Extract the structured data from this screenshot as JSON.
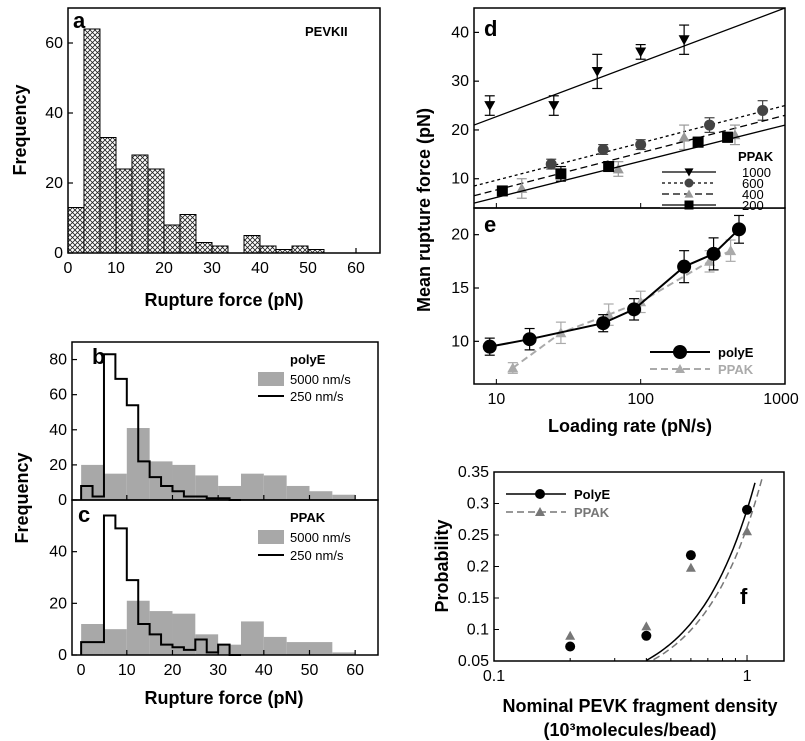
{
  "chart_data": [
    {
      "panel": "a",
      "type": "bar",
      "legend": [
        "PEVKII"
      ],
      "xlabel": "Rupture force (pN)",
      "ylabel": "Frequency",
      "xlim": [
        0,
        65
      ],
      "ylim": [
        0,
        70
      ],
      "xticks": [
        0,
        10,
        20,
        30,
        40,
        50,
        60
      ],
      "yticks": [
        0,
        20,
        40,
        60
      ],
      "bin_width": 3.33,
      "bin_starts": [
        0,
        3.33,
        6.67,
        10,
        13.33,
        16.67,
        20,
        23.33,
        26.67,
        30,
        33.33,
        36.67,
        40,
        43.33,
        46.67,
        50,
        53.33,
        56.67
      ],
      "values": [
        13,
        64,
        33,
        24,
        28,
        24,
        8,
        11,
        3,
        2,
        0,
        5,
        2,
        1,
        2,
        1,
        0,
        0
      ],
      "fill": "crosshatch"
    },
    {
      "panel": "b",
      "type": "bar",
      "legend_title": "polyE",
      "xlim": [
        -2,
        65
      ],
      "ylim": [
        0,
        90
      ],
      "yticks": [
        0,
        20,
        40,
        60,
        80
      ],
      "series": [
        {
          "name": "5000 nm/s",
          "style": "filled",
          "color": "#a8a8a8",
          "bin_starts": [
            0,
            5,
            10,
            15,
            20,
            25,
            30,
            35,
            40,
            45,
            50,
            55
          ],
          "values": [
            20,
            15,
            41,
            22,
            20,
            14,
            8,
            15,
            14,
            8,
            5,
            3
          ]
        },
        {
          "name": "250 nm/s",
          "style": "step",
          "color": "#000000",
          "bin_starts": [
            0,
            2.5,
            5,
            7.5,
            10,
            12.5,
            15,
            17.5,
            20,
            22.5,
            25,
            27.5,
            30,
            32.5
          ],
          "values": [
            8,
            2,
            83,
            69,
            54,
            22,
            13,
            8,
            5,
            2,
            2,
            1,
            1,
            0
          ]
        }
      ]
    },
    {
      "panel": "c",
      "type": "bar",
      "legend_title": "PPAK",
      "xlabel": "Rupture force (pN)",
      "ylabel": "Frequency",
      "xlim": [
        -2,
        65
      ],
      "ylim": [
        0,
        60
      ],
      "xticks": [
        0,
        10,
        20,
        30,
        40,
        50,
        60
      ],
      "yticks": [
        0,
        20,
        40
      ],
      "series": [
        {
          "name": "5000 nm/s",
          "style": "filled",
          "color": "#a8a8a8",
          "bin_starts": [
            0,
            5,
            10,
            15,
            20,
            25,
            30,
            35,
            40,
            45,
            50,
            55
          ],
          "values": [
            12,
            10,
            21,
            17,
            16,
            8,
            4,
            13,
            7,
            5,
            5,
            1
          ]
        },
        {
          "name": "250 nm/s",
          "style": "step",
          "color": "#000000",
          "bin_starts": [
            0,
            2.5,
            5,
            7.5,
            10,
            12.5,
            15,
            17.5,
            20,
            22.5,
            25,
            27.5,
            30,
            32.5
          ],
          "values": [
            5,
            5,
            54,
            49,
            29,
            12,
            8,
            4,
            3,
            2,
            6,
            1,
            4,
            0
          ]
        }
      ]
    },
    {
      "panel": "d",
      "type": "scatter",
      "legend_title": "PPAK",
      "ylabel": "Mean rupture force (pN)",
      "xscale": "log",
      "xlim": [
        7,
        1000
      ],
      "ylim": [
        4,
        45
      ],
      "yticks": [
        10,
        20,
        30,
        40
      ],
      "series": [
        {
          "name": "1000",
          "marker": "triangle-down",
          "color": "#000000",
          "line": "solid",
          "x": [
            9,
            25,
            50,
            100,
            200
          ],
          "y": [
            25,
            25,
            32,
            36,
            38.5
          ],
          "err": [
            2,
            2,
            3.5,
            1.5,
            3
          ],
          "fit": [
            [
              7,
              21
            ],
            [
              1000,
              45
            ]
          ]
        },
        {
          "name": "600",
          "marker": "circle",
          "color": "#444444",
          "line": "dotted",
          "x": [
            24,
            55,
            100,
            300,
            700
          ],
          "y": [
            13,
            16,
            17,
            21,
            24
          ],
          "err": [
            1,
            1,
            1,
            1.5,
            2
          ],
          "fit": [
            [
              7,
              8.5
            ],
            [
              1000,
              25
            ]
          ]
        },
        {
          "name": "400",
          "marker": "triangle-up",
          "color": "#999999",
          "line": "dashed",
          "x": [
            15,
            70,
            200,
            450
          ],
          "y": [
            8,
            12,
            18.5,
            19
          ],
          "err": [
            2,
            1.5,
            2.5,
            2
          ],
          "fit": [
            [
              7,
              6.5
            ],
            [
              1000,
              23
            ]
          ]
        },
        {
          "name": "200",
          "marker": "square",
          "color": "#000000",
          "line": "solid",
          "x": [
            11,
            28,
            60,
            250,
            400
          ],
          "y": [
            7.5,
            11,
            12.5,
            17.5,
            18.5
          ],
          "err": [
            0.5,
            1.5,
            1,
            1,
            1
          ],
          "fit": [
            [
              7,
              5
            ],
            [
              1000,
              21
            ]
          ]
        }
      ]
    },
    {
      "panel": "e",
      "type": "line",
      "xlabel": "Loading rate (pN/s)",
      "xscale": "log",
      "xlim": [
        7,
        1000
      ],
      "ylim": [
        6,
        22.5
      ],
      "xticks": [
        10,
        100,
        1000
      ],
      "yticks": [
        10,
        15,
        20
      ],
      "series": [
        {
          "name": "polyE",
          "marker": "circle",
          "color": "#000000",
          "line": "solid",
          "x": [
            9,
            17,
            55,
            90,
            200,
            320,
            480
          ],
          "y": [
            9.5,
            10.2,
            11.7,
            13,
            17,
            18.2,
            20.5
          ],
          "err": [
            0.8,
            1,
            0.8,
            1,
            1.5,
            1.5,
            1.3
          ]
        },
        {
          "name": "PPAK",
          "marker": "triangle-up",
          "color": "#aaaaaa",
          "line": "dashed",
          "x": [
            13,
            28,
            60,
            100,
            300,
            420
          ],
          "y": [
            7.5,
            10.8,
            12.5,
            13.7,
            17.5,
            18.5
          ],
          "err": [
            0.5,
            1,
            1,
            1,
            1,
            1
          ]
        }
      ]
    },
    {
      "panel": "f",
      "type": "scatter",
      "xlabel": "Nominal PEVK fragment density",
      "xlabel_line2": "(10³molecules/bead)",
      "ylabel": "Probability",
      "xscale": "log",
      "xlim": [
        0.1,
        1.4
      ],
      "ylim": [
        0.05,
        0.35
      ],
      "xticks": [
        0.1,
        1
      ],
      "yticks": [
        0.05,
        0.1,
        0.15,
        0.2,
        0.25,
        0.3,
        0.35
      ],
      "series": [
        {
          "name": "PolyE",
          "marker": "circle",
          "color": "#000000",
          "line": "solid",
          "x": [
            0.2,
            0.4,
            0.6,
            1.0
          ],
          "y": [
            0.073,
            0.09,
            0.218,
            0.29
          ]
        },
        {
          "name": "PPAK",
          "marker": "triangle-up",
          "color": "#777777",
          "line": "dashed",
          "x": [
            0.2,
            0.4,
            0.6,
            1.0
          ],
          "y": [
            0.09,
            0.105,
            0.198,
            0.256
          ]
        }
      ]
    }
  ],
  "panel_letters": {
    "a": "a",
    "b": "b",
    "c": "c",
    "d": "d",
    "e": "e",
    "f": "f"
  },
  "shared_labels": {
    "mean_rupture": "Mean rupture force (pN)",
    "frequency_bc": "Frequency"
  }
}
